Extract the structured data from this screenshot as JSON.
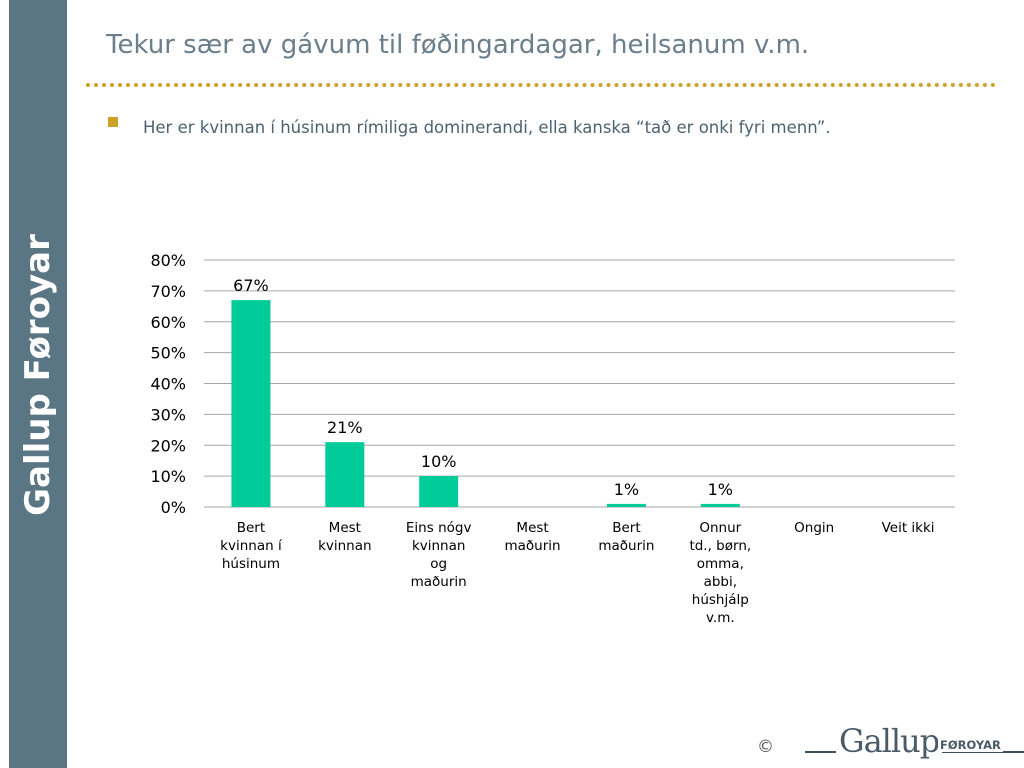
{
  "side_brand": "Gallup Føroyar",
  "title": "Tekur sær av gávum til føðingardagar, heilsanum v.m.",
  "bullet": "Her er kvinnan í húsinum rímiliga dominerandi, ella kanska “tað er onki fyri menn”.",
  "colors": {
    "bar": "#00cc99",
    "accent": "#c9a227",
    "strip": "#5a7584"
  },
  "chart_data": {
    "type": "bar",
    "title": "",
    "xlabel": "",
    "ylabel": "",
    "categories": [
      "Bert kvinnan í húsinum",
      "Mest kvinnan",
      "Eins nógv kvinnan og maðurin",
      "Mest maðurin",
      "Bert maðurin",
      "Onnur td., børn, omma, abbi, húshjálp v.m.",
      "Ongin",
      "Veit ikki"
    ],
    "category_lines": [
      [
        "Bert",
        "kvinnan í",
        "húsinum"
      ],
      [
        "Mest",
        "kvinnan"
      ],
      [
        "Eins nógv",
        "kvinnan",
        "og",
        "maðurin"
      ],
      [
        "Mest",
        "maðurin"
      ],
      [
        "Bert",
        "maðurin"
      ],
      [
        "Onnur",
        "td., børn,",
        "omma,",
        "abbi,",
        "húshjálp",
        "v.m."
      ],
      [
        "Ongin"
      ],
      [
        "Veit ikki"
      ]
    ],
    "values": [
      67,
      21,
      10,
      0,
      1,
      1,
      0,
      0
    ],
    "data_labels": [
      "67%",
      "21%",
      "10%",
      "",
      "1%",
      "1%",
      "",
      ""
    ],
    "ylim": [
      0,
      80
    ],
    "yticks": [
      0,
      10,
      20,
      30,
      40,
      50,
      60,
      70,
      80
    ],
    "ytick_labels": [
      "0%",
      "10%",
      "20%",
      "30%",
      "40%",
      "50%",
      "60%",
      "70%",
      "80%"
    ],
    "grid": true,
    "legend": "none"
  },
  "footer": {
    "copyright": "©",
    "logo_main": "Gallup",
    "logo_sub": "FØROYAR"
  }
}
